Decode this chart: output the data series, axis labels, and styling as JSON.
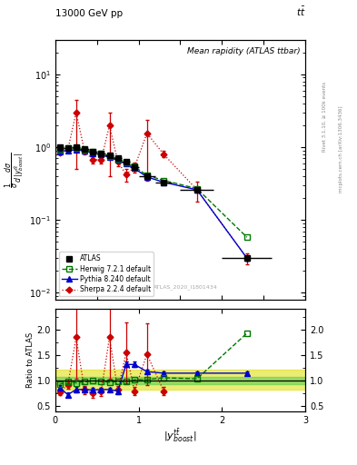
{
  "title_top": "13000 GeV pp",
  "title_right": "tt",
  "plot_title": "Mean rapidity (ATLAS ttbar)",
  "ylabel_ratio": "Ratio to ATLAS",
  "watermark": "ATLAS_2020_I1801434",
  "right_label1": "Rivet 3.1.10, ≥ 100k events",
  "right_label2": "mcplots.cern.ch [arXiv:1306.3436]",
  "atlas_x": [
    0.05,
    0.15,
    0.25,
    0.35,
    0.45,
    0.55,
    0.65,
    0.75,
    0.85,
    0.95,
    1.1,
    1.3,
    1.7,
    2.3
  ],
  "atlas_y": [
    1.0,
    0.98,
    1.0,
    0.95,
    0.87,
    0.83,
    0.77,
    0.7,
    0.63,
    0.53,
    0.4,
    0.33,
    0.26,
    0.03
  ],
  "atlas_yerr": [
    0.04,
    0.03,
    0.03,
    0.03,
    0.03,
    0.03,
    0.03,
    0.03,
    0.03,
    0.03,
    0.02,
    0.02,
    0.015,
    0.003
  ],
  "atlas_xerr": [
    0.05,
    0.05,
    0.05,
    0.05,
    0.05,
    0.05,
    0.05,
    0.05,
    0.05,
    0.05,
    0.1,
    0.1,
    0.2,
    0.3
  ],
  "herwig_x": [
    0.05,
    0.15,
    0.25,
    0.35,
    0.45,
    0.55,
    0.65,
    0.75,
    0.85,
    0.95,
    1.1,
    1.3,
    1.7,
    2.3
  ],
  "herwig_y": [
    0.93,
    0.97,
    0.96,
    0.93,
    0.87,
    0.82,
    0.75,
    0.69,
    0.62,
    0.54,
    0.41,
    0.35,
    0.27,
    0.058
  ],
  "pythia_x": [
    0.05,
    0.15,
    0.25,
    0.35,
    0.45,
    0.55,
    0.65,
    0.75,
    0.85,
    0.95,
    1.1,
    1.3,
    1.7,
    2.3
  ],
  "pythia_y": [
    0.87,
    0.9,
    0.92,
    0.89,
    0.83,
    0.79,
    0.72,
    0.66,
    0.59,
    0.51,
    0.39,
    0.33,
    0.26,
    0.03
  ],
  "pythia_yerr": [
    0.03,
    0.03,
    0.03,
    0.03,
    0.02,
    0.02,
    0.02,
    0.02,
    0.02,
    0.02,
    0.015,
    0.015,
    0.012,
    0.002
  ],
  "sherpa_x": [
    0.05,
    0.15,
    0.25,
    0.35,
    0.45,
    0.55,
    0.65,
    0.75,
    0.85,
    0.95,
    1.1,
    1.3,
    1.7,
    2.3
  ],
  "sherpa_y": [
    0.84,
    0.92,
    3.0,
    0.88,
    0.67,
    0.67,
    2.0,
    0.63,
    0.42,
    0.53,
    1.55,
    0.8,
    0.26,
    0.03
  ],
  "sherpa_yerr_up": [
    0.05,
    0.08,
    1.5,
    0.08,
    0.08,
    0.08,
    1.0,
    0.08,
    0.08,
    0.08,
    0.8,
    0.08,
    0.08,
    0.005
  ],
  "sherpa_yerr_dn": [
    0.05,
    0.08,
    2.5,
    0.08,
    0.08,
    0.08,
    1.6,
    0.08,
    0.08,
    0.08,
    1.2,
    0.08,
    0.08,
    0.005
  ],
  "ratio_atlas_band_green": [
    0.93,
    1.07
  ],
  "ratio_atlas_band_yellow": [
    0.82,
    1.22
  ],
  "ratio_herwig_x": [
    0.05,
    0.15,
    0.25,
    0.35,
    0.45,
    0.55,
    0.65,
    0.75,
    0.85,
    0.95,
    1.1,
    1.3,
    1.7,
    2.3
  ],
  "ratio_herwig_y": [
    0.93,
    0.99,
    0.96,
    0.98,
    1.0,
    0.99,
    0.97,
    0.99,
    0.98,
    1.02,
    1.025,
    1.06,
    1.04,
    1.93
  ],
  "ratio_pythia_x": [
    0.05,
    0.15,
    0.25,
    0.35,
    0.45,
    0.55,
    0.65,
    0.75,
    0.85,
    0.95,
    1.1,
    1.3,
    1.7,
    2.3
  ],
  "ratio_pythia_y": [
    0.87,
    0.73,
    0.83,
    0.83,
    0.82,
    0.83,
    0.83,
    0.8,
    1.32,
    1.32,
    1.18,
    1.15,
    1.15,
    1.15
  ],
  "ratio_pythia_yerr": [
    0.05,
    0.05,
    0.05,
    0.05,
    0.04,
    0.04,
    0.04,
    0.04,
    0.05,
    0.05,
    0.04,
    0.04,
    0.04,
    0.04
  ],
  "ratio_sherpa_x": [
    0.05,
    0.15,
    0.25,
    0.35,
    0.45,
    0.55,
    0.65,
    0.75,
    0.85,
    0.95,
    1.1,
    1.3
  ],
  "ratio_sherpa_y": [
    0.78,
    0.92,
    1.85,
    0.82,
    0.75,
    0.79,
    1.85,
    0.82,
    1.55,
    0.8,
    1.52,
    0.8
  ],
  "ratio_sherpa_yerr_up": [
    0.05,
    0.08,
    0.8,
    0.08,
    0.08,
    0.08,
    0.8,
    0.08,
    0.6,
    0.08,
    0.6,
    0.08
  ],
  "ratio_sherpa_yerr_dn": [
    0.05,
    0.08,
    0.8,
    0.08,
    0.08,
    0.08,
    0.8,
    0.08,
    0.6,
    0.08,
    0.6,
    0.08
  ],
  "color_atlas": "#000000",
  "color_herwig": "#007700",
  "color_pythia": "#0000cc",
  "color_sherpa": "#cc0000",
  "color_green_band": "#55cc55",
  "color_yellow_band": "#dddd00",
  "xlim": [
    0,
    3
  ],
  "ylim_main": [
    0.008,
    30
  ],
  "ylim_ratio": [
    0.4,
    2.4
  ]
}
